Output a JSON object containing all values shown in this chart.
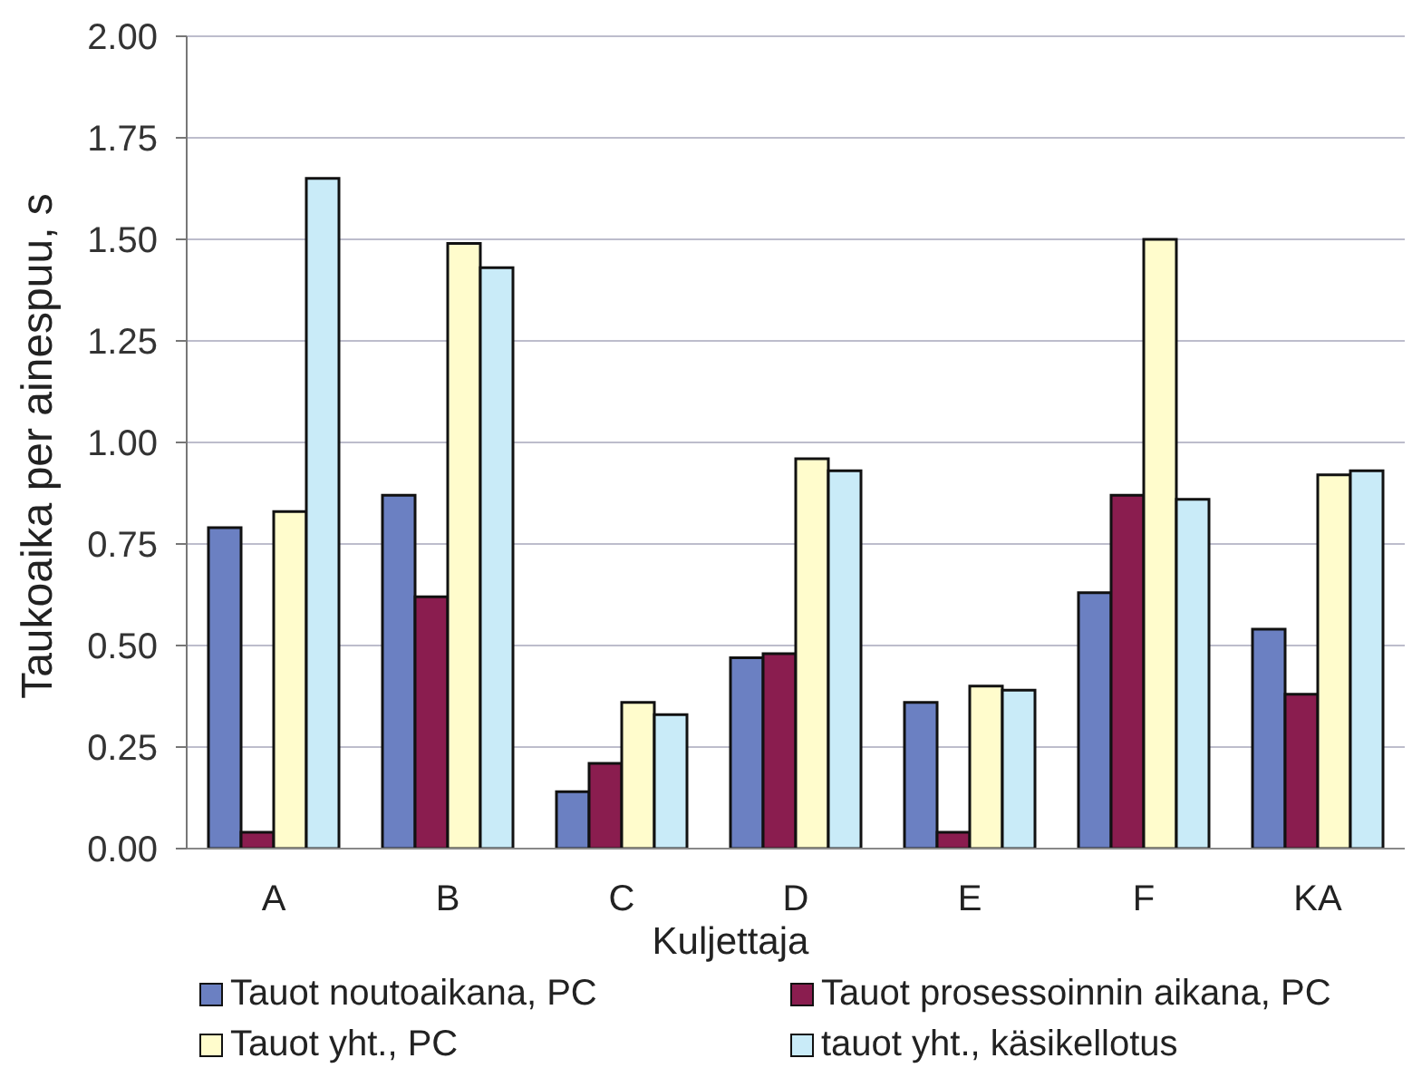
{
  "chart_data": {
    "type": "bar",
    "xlabel": "Kuljettaja",
    "ylabel": "Taukoaika per ainespuu, s",
    "categories": [
      "A",
      "B",
      "C",
      "D",
      "E",
      "F",
      "KA"
    ],
    "series": [
      {
        "name": "Tauot noutoaikana, PC",
        "color": "#6b80c2",
        "values": [
          0.79,
          0.87,
          0.14,
          0.47,
          0.36,
          0.63,
          0.54
        ]
      },
      {
        "name": "Tauot prosessoinnin aikana, PC",
        "color": "#8a1d4f",
        "values": [
          0.04,
          0.62,
          0.21,
          0.48,
          0.04,
          0.87,
          0.38
        ]
      },
      {
        "name": "Tauot yht., PC",
        "color": "#fffccc",
        "values": [
          0.83,
          1.49,
          0.36,
          0.96,
          0.4,
          1.5,
          0.92
        ]
      },
      {
        "name": "tauot yht., käsikellotus",
        "color": "#c9ebf8",
        "values": [
          1.65,
          1.43,
          0.33,
          0.93,
          0.39,
          0.86,
          0.93
        ]
      }
    ],
    "ylim": [
      0,
      2
    ],
    "yticks": [
      {
        "value": 0,
        "label": "0.00"
      },
      {
        "value": 0.25,
        "label": "0.25"
      },
      {
        "value": 0.5,
        "label": "0.50"
      },
      {
        "value": 0.75,
        "label": "0.75"
      },
      {
        "value": 1,
        "label": "1.00"
      },
      {
        "value": 1.25,
        "label": "1.25"
      },
      {
        "value": 1.5,
        "label": "1.50"
      },
      {
        "value": 1.75,
        "label": "1.75"
      },
      {
        "value": 2,
        "label": "2.00"
      }
    ],
    "grid": "y",
    "legend": "bottom"
  }
}
